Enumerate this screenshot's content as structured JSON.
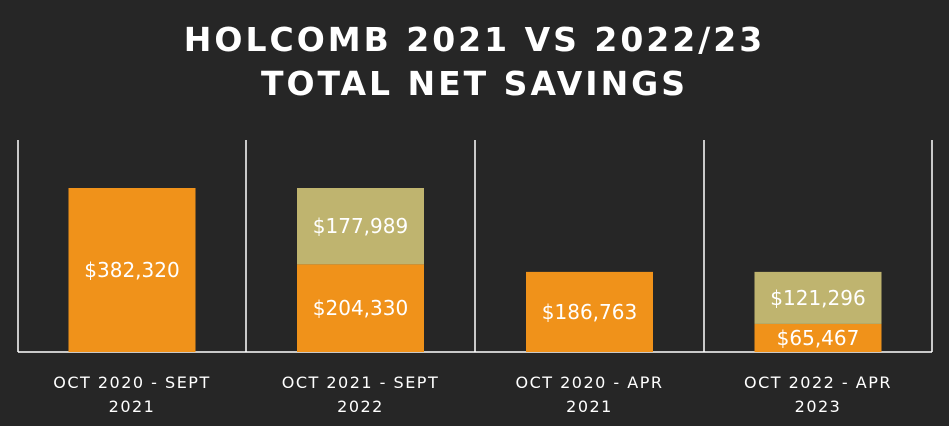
{
  "chart_data": {
    "type": "bar",
    "stacked": true,
    "title": "HOLCOMB 2021 VS 2022/23 TOTAL NET SAVINGS",
    "title_lines": [
      "HOLCOMB 2021 VS 2022/23",
      "TOTAL NET SAVINGS"
    ],
    "categories": [
      [
        "OCT 2020 - SEPT",
        "2021"
      ],
      [
        "OCT 2021 - SEPT",
        "2022"
      ],
      [
        "OCT 2020 - APR",
        "2021"
      ],
      [
        "OCT 2022 - APR",
        "2023"
      ]
    ],
    "series": [
      {
        "color": "#f0921a",
        "values": [
          382320,
          204330,
          186763,
          65467
        ],
        "labels": [
          "$382,320",
          "$204,330",
          "$186,763",
          "$65,467"
        ]
      },
      {
        "color": "#bfb46f",
        "values": [
          null,
          177989,
          null,
          121296
        ],
        "labels": [
          null,
          "$177,989",
          null,
          "$121,296"
        ]
      }
    ],
    "grid": false,
    "legend": "none"
  }
}
